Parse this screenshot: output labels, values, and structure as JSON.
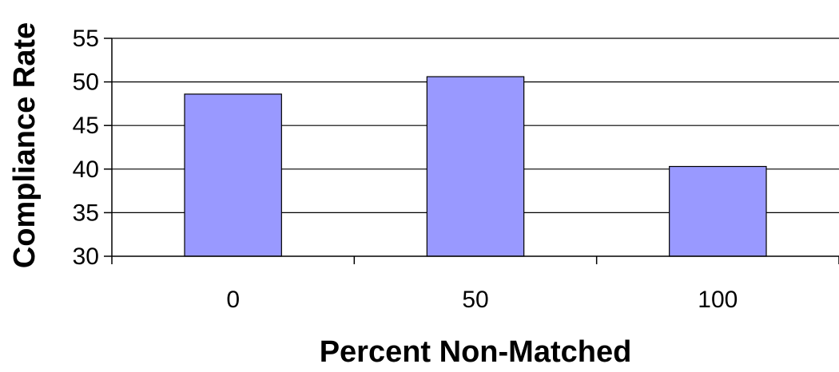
{
  "chart_data": {
    "type": "bar",
    "title": "",
    "xlabel": "Percent Non-Matched",
    "ylabel": "Compliance Rate",
    "categories": [
      "0",
      "50",
      "100"
    ],
    "values": [
      48.6,
      50.6,
      40.3
    ],
    "ylim": [
      30,
      55
    ],
    "yticks": [
      "30",
      "35",
      "40",
      "45",
      "50",
      "55"
    ],
    "grid": true,
    "legend": "none",
    "colors": {
      "bar": "#9999ff",
      "bar_edge": "#000000",
      "grid": "#000000"
    }
  }
}
